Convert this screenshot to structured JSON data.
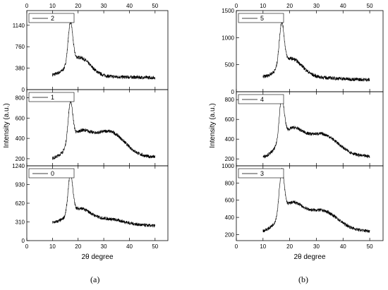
{
  "figure_labels": [
    "(a)",
    "(b)"
  ],
  "chart_data": [
    {
      "type": "line",
      "panel": "(a)",
      "xlabel": "2θ degree",
      "ylabel": "Intensity (a.u.)",
      "xlim": [
        0,
        55
      ],
      "xticks": [
        0,
        10,
        20,
        30,
        40,
        50
      ],
      "grid": false,
      "subplots": [
        {
          "series": [
            {
              "name": "2",
              "shape": {
                "base": 250,
                "amp": 720,
                "broad": 330,
                "halo": 0,
                "tail": 140
              }
            }
          ],
          "ylim": [
            0,
            1400
          ],
          "yticks": [
            0,
            380,
            760,
            1140
          ],
          "legend": "top-left"
        },
        {
          "series": [
            {
              "name": "1",
              "shape": {
                "base": 195,
                "amp": 390,
                "broad": 230,
                "halo": 260,
                "tail": 250
              }
            }
          ],
          "ylim": [
            130,
            880
          ],
          "yticks": [
            200,
            400,
            600,
            800
          ],
          "legend": "top-left"
        },
        {
          "series": [
            {
              "name": "0",
              "shape": {
                "base": 290,
                "amp": 660,
                "broad": 240,
                "halo": 90,
                "tail": 160
              }
            }
          ],
          "ylim": [
            0,
            1240
          ],
          "yticks": [
            0,
            310,
            620,
            930,
            1240
          ],
          "legend": "top-left"
        }
      ]
    },
    {
      "type": "line",
      "panel": "(b)",
      "xlabel": "2θ degree",
      "ylabel": "Intensity (a.u.)",
      "xlim": [
        0,
        55
      ],
      "xticks": [
        0,
        10,
        20,
        30,
        40,
        50
      ],
      "grid": false,
      "subplots": [
        {
          "series": [
            {
              "name": "5",
              "shape": {
                "base": 260,
                "amp": 780,
                "broad": 360,
                "halo": 20,
                "tail": 150
              }
            }
          ],
          "ylim": [
            0,
            1500
          ],
          "yticks": [
            0,
            500,
            1000,
            1500
          ],
          "legend": "top-left"
        },
        {
          "series": [
            {
              "name": "4",
              "shape": {
                "base": 210,
                "amp": 420,
                "broad": 260,
                "halo": 230,
                "tail": 250
              }
            }
          ],
          "ylim": [
            130,
            880
          ],
          "yticks": [
            200,
            400,
            600,
            800
          ],
          "legend": "top-left"
        },
        {
          "series": [
            {
              "name": "3",
              "shape": {
                "base": 230,
                "amp": 500,
                "broad": 300,
                "halo": 240,
                "tail": 260
              }
            }
          ],
          "ylim": [
            130,
            1000
          ],
          "yticks": [
            200,
            400,
            600,
            800,
            1000
          ],
          "legend": "top-left"
        }
      ]
    }
  ]
}
